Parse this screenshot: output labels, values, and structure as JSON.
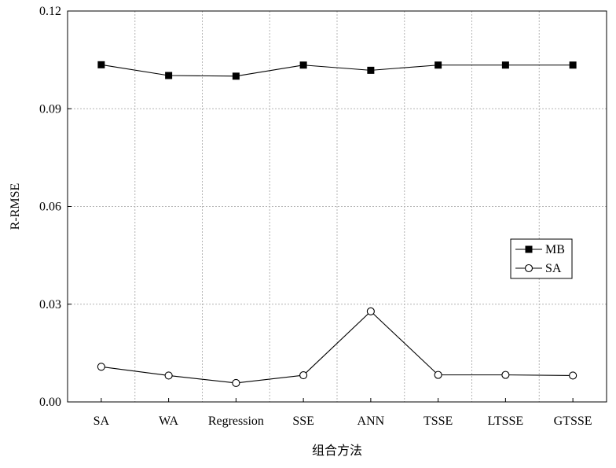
{
  "chart_data": {
    "type": "line",
    "xlabel": "组合方法",
    "ylabel": "R-RMSE",
    "categories": [
      "SA",
      "WA",
      "Regression",
      "SSE",
      "ANN",
      "TSSE",
      "LTSSE",
      "GTSSE"
    ],
    "ylim": [
      0.0,
      0.12
    ],
    "yticks": [
      "0.00",
      "0.03",
      "0.06",
      "0.09",
      "0.12"
    ],
    "grid": true,
    "legend_position": "right",
    "series": [
      {
        "name": "MB",
        "marker": "filled-square",
        "color": "#000000",
        "values": [
          0.1035,
          0.1002,
          0.1,
          0.1034,
          0.1018,
          0.1034,
          0.1034,
          0.1034
        ]
      },
      {
        "name": "SA",
        "marker": "open-circle",
        "color": "#000000",
        "values": [
          0.0108,
          0.0081,
          0.0058,
          0.0082,
          0.0278,
          0.0083,
          0.0083,
          0.0081
        ]
      }
    ]
  }
}
